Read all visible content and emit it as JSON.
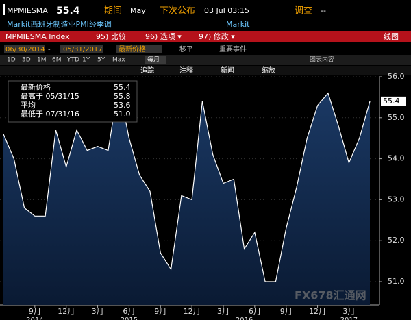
{
  "header": {
    "ticker": "MPMIESMA",
    "last": "55.4",
    "period_label": "期间",
    "period": "May",
    "next_label": "下次公布",
    "next": "03 Jul 03:15",
    "survey_label": "调查",
    "survey": "--",
    "desc": "Markit西班牙制造业PMI经季调",
    "source": "Markit"
  },
  "toolbar": {
    "index": "MPMIESMA Index",
    "compare": "95) 比较",
    "options": "96) 选项 ▾",
    "modify": "97) 修改 ▾",
    "chart_kind": "线图",
    "start": "06/30/2014",
    "dash": "-",
    "end": "05/31/2017",
    "field": "最新价格",
    "smooth": "移平",
    "events": "重要事件",
    "ranges": [
      "1D",
      "3D",
      "1M",
      "6M",
      "YTD",
      "1Y",
      "5Y",
      "Max"
    ],
    "freq": "每月",
    "content": "图表内容",
    "track": "追踪",
    "annotate": "注释",
    "news": "新闻",
    "zoom": "缩放"
  },
  "legend_box": {
    "rows": [
      [
        "最新价格",
        "55.4"
      ],
      [
        "最高于 05/31/15",
        "55.8"
      ],
      [
        "平均",
        "53.6"
      ],
      [
        "最低于 07/31/16",
        "51.0"
      ]
    ]
  },
  "watermark": "FX678汇通网",
  "chart_data": {
    "type": "area",
    "title": null,
    "categories": [
      null,
      null,
      null,
      "9月",
      null,
      null,
      "12月",
      null,
      null,
      "3月",
      null,
      null,
      "6月",
      null,
      null,
      "9月",
      null,
      null,
      "12月",
      null,
      null,
      "3月",
      null,
      null,
      "6月",
      null,
      null,
      "9月",
      null,
      null,
      "12月",
      null,
      null,
      "3月",
      null,
      null
    ],
    "category_years": [
      null,
      null,
      null,
      "2014",
      null,
      null,
      null,
      null,
      null,
      null,
      null,
      null,
      "2015",
      null,
      null,
      null,
      null,
      null,
      null,
      null,
      null,
      null,
      null,
      "2016",
      null,
      null,
      null,
      null,
      null,
      null,
      null,
      null,
      null,
      "2017",
      null,
      null
    ],
    "series": [
      {
        "name": "MPMIESMA Index",
        "color": "#ffffff",
        "values": [
          54.6,
          54.0,
          52.8,
          52.6,
          52.6,
          54.7,
          53.8,
          54.7,
          54.2,
          54.3,
          54.2,
          55.8,
          54.5,
          53.6,
          53.2,
          51.7,
          51.3,
          53.1,
          53.0,
          55.4,
          54.1,
          53.4,
          53.5,
          51.8,
          52.2,
          51.0,
          51.0,
          52.3,
          53.3,
          54.5,
          55.3,
          55.6,
          54.8,
          53.9,
          54.5,
          55.4
        ]
      }
    ],
    "ylim": [
      50.5,
      56.2
    ],
    "yticks": [
      {
        "value": 51,
        "label": "51.0"
      },
      {
        "value": 52,
        "label": "52.0"
      },
      {
        "value": 53,
        "label": "53.0"
      },
      {
        "value": 54,
        "label": "54.0"
      },
      {
        "value": 55,
        "label": "55.0"
      },
      {
        "value": 56,
        "label": "56.0"
      }
    ],
    "grid": true
  }
}
